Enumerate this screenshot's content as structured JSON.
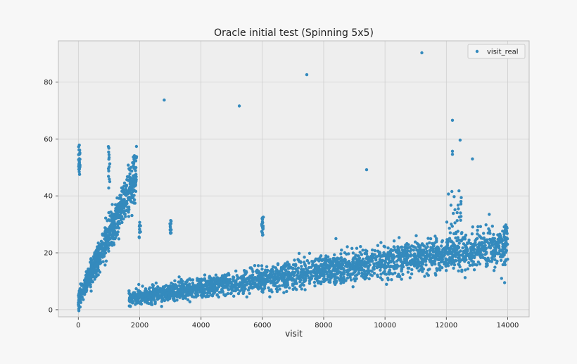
{
  "chart_data": {
    "type": "scatter",
    "title": "Oracle initial test (Spinning 5x5)",
    "xlabel": "visit",
    "ylabel": "",
    "xlim": [
      -650,
      14700
    ],
    "ylim": [
      -2.5,
      94.5
    ],
    "xticks": [
      0,
      2000,
      4000,
      6000,
      8000,
      10000,
      12000,
      14000
    ],
    "xtick_labels": [
      "0",
      "2000",
      "4000",
      "6000",
      "8000",
      "10000",
      "12000",
      "14000"
    ],
    "yticks": [
      0,
      20,
      40,
      60,
      80
    ],
    "ytick_labels": [
      "0",
      "20",
      "40",
      "60",
      "80"
    ],
    "grid": true,
    "legend_position": "top-right",
    "point_color": "#348abd",
    "background_color": "#eeeeee",
    "grid_color": "#cfcfcf",
    "series": [
      {
        "name": "visit_real",
        "regions": [
          {
            "kind": "band",
            "x": [
              0,
              1900
            ],
            "y_start": [
              3,
              2
            ],
            "y_end": [
              48,
              55
            ],
            "spread": 4.5,
            "count": 700
          },
          {
            "kind": "cluster",
            "x": [
              0,
              60
            ],
            "y": [
              47,
              58
            ],
            "count": 25
          },
          {
            "kind": "cluster",
            "x": [
              980,
              1030
            ],
            "y": [
              42,
              58
            ],
            "count": 14
          },
          {
            "kind": "cluster",
            "x": [
              1980,
              2030
            ],
            "y": [
              25,
              31
            ],
            "count": 12
          },
          {
            "kind": "cluster",
            "x": [
              2980,
              3030
            ],
            "y": [
              25,
              32
            ],
            "count": 12
          },
          {
            "kind": "cluster",
            "x": [
              5980,
              6040
            ],
            "y": [
              25,
              33
            ],
            "count": 16
          },
          {
            "kind": "band",
            "x": [
              1650,
              14000
            ],
            "y_start": [
              4,
              4
            ],
            "y_end": [
              23,
              23
            ],
            "spread": 3.5,
            "count": 2600
          },
          {
            "kind": "cluster",
            "x": [
              12000,
              12500
            ],
            "y": [
              27,
              42
            ],
            "count": 25
          }
        ],
        "outliers": [
          {
            "x": 2800,
            "y": 73.7
          },
          {
            "x": 5250,
            "y": 71.6
          },
          {
            "x": 7450,
            "y": 82.6
          },
          {
            "x": 9400,
            "y": 49.2
          },
          {
            "x": 11200,
            "y": 90.3
          },
          {
            "x": 12200,
            "y": 66.6
          },
          {
            "x": 12200,
            "y": 55.7
          },
          {
            "x": 12200,
            "y": 54.6
          },
          {
            "x": 12450,
            "y": 59.6
          },
          {
            "x": 12850,
            "y": 53.0
          },
          {
            "x": 13400,
            "y": 33.5
          },
          {
            "x": 13900,
            "y": 9.5
          },
          {
            "x": 13800,
            "y": 11.0
          },
          {
            "x": 8400,
            "y": 25.0
          },
          {
            "x": 7200,
            "y": 19.8
          },
          {
            "x": 1700,
            "y": 2.8
          }
        ]
      }
    ]
  }
}
